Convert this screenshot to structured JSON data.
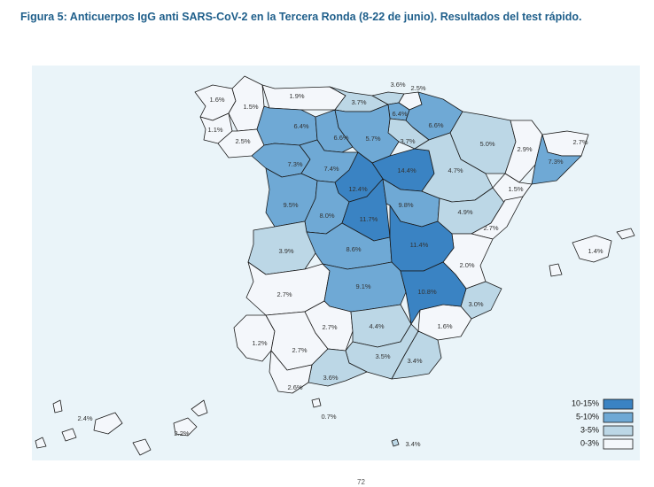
{
  "title": "Figura 5: Anticuerpos IgG anti SARS-CoV-2 en la Tercera Ronda (8-22 de junio). Resultados del test rápido.",
  "page_number": "72",
  "colors": {
    "c10_15": "#3a83c3",
    "c5_10": "#6fa9d5",
    "c3_5": "#bcd7e6",
    "c0_3": "#f4f7fb",
    "border": "#1a1a1a",
    "background": "#eaf4f9"
  },
  "legend": [
    {
      "label": "10-15%",
      "class": "c10_15"
    },
    {
      "label": "5-10%",
      "class": "c5_10"
    },
    {
      "label": "3-5%",
      "class": "c3_5"
    },
    {
      "label": "0-3%",
      "class": "c0_3"
    }
  ],
  "provinces": [
    {
      "id": "a-coruna",
      "value": "1.6%",
      "class": "c0_3"
    },
    {
      "id": "lugo",
      "value": "1.5%",
      "class": "c0_3"
    },
    {
      "id": "pontevedra",
      "value": "1.1%",
      "class": "c0_3"
    },
    {
      "id": "ourense",
      "value": "2.5%",
      "class": "c0_3"
    },
    {
      "id": "asturias",
      "value": "1.9%",
      "class": "c0_3"
    },
    {
      "id": "cantabria",
      "value": "3.7%",
      "class": "c3_5"
    },
    {
      "id": "bizkaia",
      "value": "3.6%",
      "class": "c3_5"
    },
    {
      "id": "gipuzkoa",
      "value": "2.5%",
      "class": "c0_3"
    },
    {
      "id": "araba",
      "value": "6.4%",
      "class": "c5_10"
    },
    {
      "id": "navarra",
      "value": "6.6%",
      "class": "c5_10"
    },
    {
      "id": "la-rioja",
      "value": "3.7%",
      "class": "c3_5"
    },
    {
      "id": "leon",
      "value": "6.4%",
      "class": "c5_10"
    },
    {
      "id": "palencia",
      "value": "6.6%",
      "class": "c5_10"
    },
    {
      "id": "burgos",
      "value": "5.7%",
      "class": "c5_10"
    },
    {
      "id": "zamora",
      "value": "7.3%",
      "class": "c5_10"
    },
    {
      "id": "valladolid",
      "value": "7.4%",
      "class": "c5_10"
    },
    {
      "id": "soria",
      "value": "14.4%",
      "class": "c10_15"
    },
    {
      "id": "segovia",
      "value": "12.4%",
      "class": "c10_15"
    },
    {
      "id": "salamanca",
      "value": "9.5%",
      "class": "c5_10"
    },
    {
      "id": "avila",
      "value": "8.0%",
      "class": "c5_10"
    },
    {
      "id": "madrid",
      "value": "11.7%",
      "class": "c10_15"
    },
    {
      "id": "guadalajara",
      "value": "9.8%",
      "class": "c5_10"
    },
    {
      "id": "huesca",
      "value": "5.0%",
      "class": "c3_5"
    },
    {
      "id": "zaragoza",
      "value": "4.7%",
      "class": "c3_5"
    },
    {
      "id": "teruel",
      "value": "4.9%",
      "class": "c3_5"
    },
    {
      "id": "lleida",
      "value": "2.9%",
      "class": "c0_3"
    },
    {
      "id": "girona",
      "value": "2.7%",
      "class": "c0_3"
    },
    {
      "id": "barcelona",
      "value": "7.3%",
      "class": "c5_10"
    },
    {
      "id": "tarragona",
      "value": "1.5%",
      "class": "c0_3"
    },
    {
      "id": "castellon",
      "value": "2.7%",
      "class": "c0_3"
    },
    {
      "id": "valencia",
      "value": "2.0%",
      "class": "c0_3"
    },
    {
      "id": "alicante",
      "value": "3.0%",
      "class": "c3_5"
    },
    {
      "id": "murcia",
      "value": "1.6%",
      "class": "c0_3"
    },
    {
      "id": "caceres",
      "value": "3.9%",
      "class": "c3_5"
    },
    {
      "id": "toledo",
      "value": "8.6%",
      "class": "c5_10"
    },
    {
      "id": "cuenca",
      "value": "11.4%",
      "class": "c10_15"
    },
    {
      "id": "badajoz",
      "value": "2.7%",
      "class": "c0_3"
    },
    {
      "id": "ciudad-real",
      "value": "9.1%",
      "class": "c5_10"
    },
    {
      "id": "albacete",
      "value": "10.8%",
      "class": "c10_15"
    },
    {
      "id": "huelva",
      "value": "1.2%",
      "class": "c0_3"
    },
    {
      "id": "sevilla",
      "value": "2.7%",
      "class": "c0_3"
    },
    {
      "id": "cordoba",
      "value": "2.7%",
      "class": "c0_3"
    },
    {
      "id": "jaen",
      "value": "4.4%",
      "class": "c3_5"
    },
    {
      "id": "granada",
      "value": "3.5%",
      "class": "c3_5"
    },
    {
      "id": "almeria",
      "value": "3.4%",
      "class": "c3_5"
    },
    {
      "id": "malaga",
      "value": "3.6%",
      "class": "c3_5"
    },
    {
      "id": "cadiz",
      "value": "2.6%",
      "class": "c0_3"
    },
    {
      "id": "baleares",
      "value": "1.4%",
      "class": "c0_3"
    },
    {
      "id": "las-palmas",
      "value": "2.2%",
      "class": "c0_3"
    },
    {
      "id": "santa-cruz-tenerife",
      "value": "2.4%",
      "class": "c0_3"
    },
    {
      "id": "ceuta",
      "value": "0.7%",
      "class": "c0_3"
    },
    {
      "id": "melilla",
      "value": "3.4%",
      "class": "c3_5"
    }
  ]
}
